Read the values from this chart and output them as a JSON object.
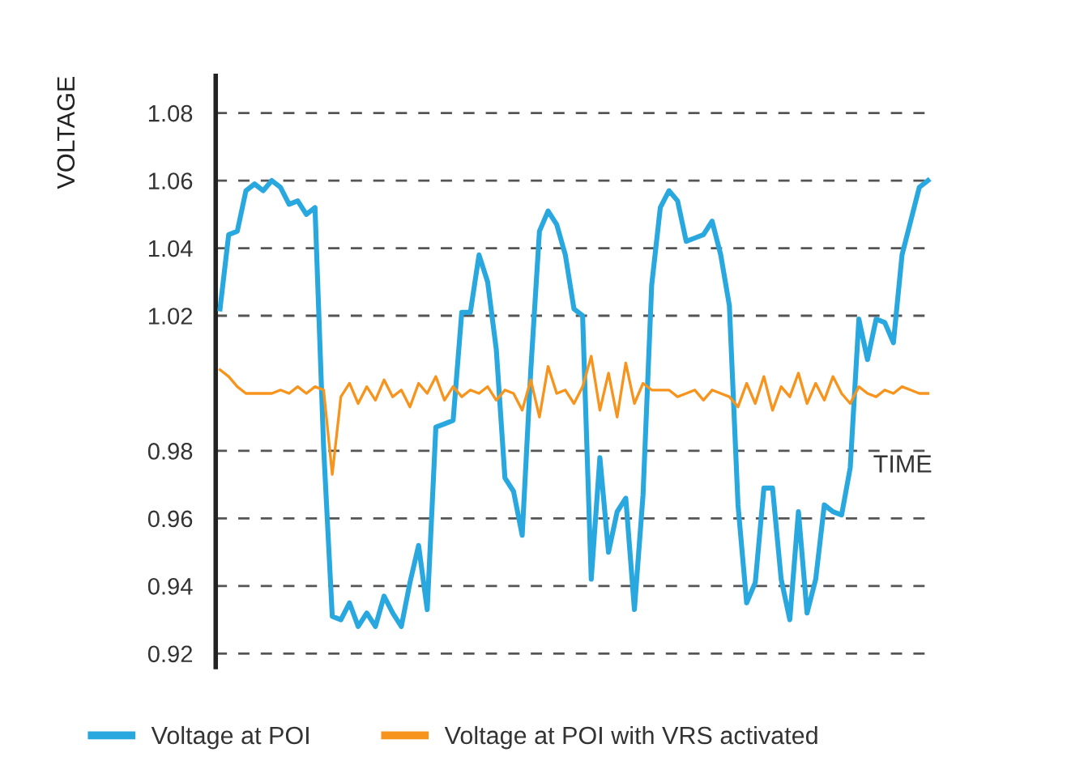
{
  "chart_data": {
    "type": "line",
    "xlabel": "TIME",
    "ylabel": "VOLTAGE",
    "categories": [
      null,
      null,
      null,
      null,
      null,
      null,
      null,
      null,
      null,
      null,
      null,
      null,
      null,
      null,
      null,
      null,
      null,
      null,
      null,
      null,
      null,
      null,
      null,
      null,
      null,
      null,
      null,
      null,
      null,
      null,
      null,
      null,
      null,
      null,
      null,
      null,
      null,
      null,
      null,
      null,
      null,
      null,
      null,
      null,
      null,
      null,
      null,
      null,
      null,
      null,
      null,
      null,
      null,
      null,
      null,
      null,
      null,
      null,
      null,
      null,
      null,
      null,
      null,
      null,
      null,
      null,
      null,
      null,
      null,
      null,
      null,
      null,
      null,
      null,
      null,
      null,
      null,
      null,
      null,
      null,
      null,
      null,
      null
    ],
    "series": [
      {
        "name": "Voltage at POI",
        "color": "#29a8e0",
        "values": [
          1.022,
          1.044,
          1.045,
          1.057,
          1.059,
          1.057,
          1.06,
          1.058,
          1.053,
          1.054,
          1.05,
          1.052,
          0.981,
          0.931,
          0.93,
          0.935,
          0.928,
          0.932,
          0.928,
          0.937,
          0.932,
          0.928,
          0.941,
          0.952,
          0.933,
          0.987,
          0.988,
          0.989,
          1.021,
          1.021,
          1.038,
          1.03,
          1.01,
          0.972,
          0.968,
          0.955,
          1.004,
          1.045,
          1.051,
          1.047,
          1.038,
          1.022,
          1.02,
          0.942,
          0.978,
          0.95,
          0.962,
          0.966,
          0.933,
          0.967,
          1.029,
          1.052,
          1.057,
          1.054,
          1.042,
          1.043,
          1.044,
          1.048,
          1.038,
          1.023,
          0.964,
          0.935,
          0.941,
          0.969,
          0.969,
          0.942,
          0.93,
          0.962,
          0.932,
          0.942,
          0.964,
          0.962,
          0.961,
          0.975,
          1.019,
          1.007,
          1.019,
          1.018,
          1.012,
          1.038,
          1.048,
          1.058,
          1.06
        ]
      },
      {
        "name": "Voltage at POI with VRS activated",
        "color": "#f7941d",
        "values": [
          1.004,
          1.002,
          0.999,
          0.997,
          0.997,
          0.997,
          0.997,
          0.998,
          0.997,
          0.999,
          0.997,
          0.999,
          0.998,
          0.973,
          0.996,
          1.0,
          0.994,
          0.999,
          0.995,
          1.001,
          0.996,
          0.998,
          0.993,
          1.0,
          0.997,
          1.002,
          0.995,
          0.999,
          0.996,
          0.998,
          0.997,
          0.999,
          0.995,
          0.998,
          0.997,
          0.992,
          1.001,
          0.99,
          1.005,
          0.997,
          0.998,
          0.994,
          0.999,
          1.008,
          0.992,
          1.003,
          0.99,
          1.006,
          0.994,
          1.0,
          0.998,
          0.998,
          0.998,
          0.996,
          0.997,
          0.998,
          0.995,
          0.998,
          0.997,
          0.996,
          0.993,
          1.0,
          0.994,
          1.002,
          0.992,
          0.999,
          0.996,
          1.003,
          0.994,
          1.0,
          0.995,
          1.002,
          0.997,
          0.994,
          0.999,
          0.997,
          0.996,
          0.998,
          0.997,
          0.999,
          0.998,
          0.997,
          0.997
        ]
      }
    ],
    "ylim": [
      0.916,
      1.091
    ],
    "yticks": [
      1.08,
      1.06,
      1.04,
      1.02,
      0.98,
      0.96,
      0.94,
      0.92
    ],
    "grid": "y",
    "legend": "bottom",
    "marker": "none",
    "line_style": "solid"
  }
}
